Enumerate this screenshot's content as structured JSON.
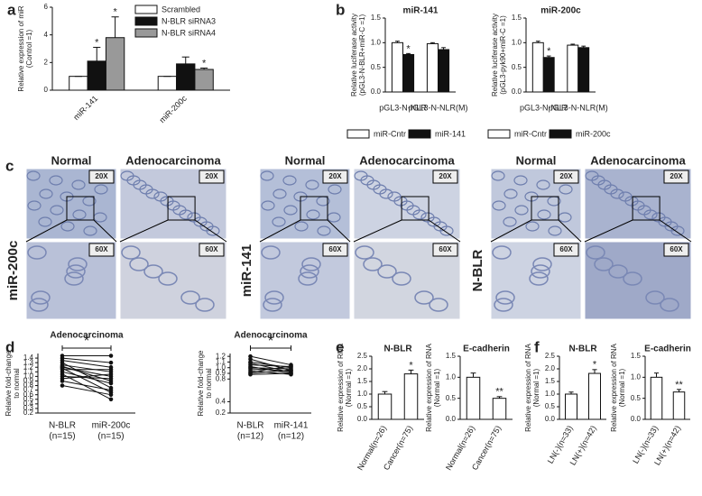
{
  "panel_labels": [
    "a",
    "b",
    "c",
    "d",
    "e",
    "f"
  ],
  "micrographs": {
    "labels": {
      "normal": "Normal",
      "tumor": "Adenocarcinoma",
      "low": "20X",
      "high": "60X"
    },
    "rows": [
      "miR-200c",
      "miR-141",
      "N-BLR"
    ]
  },
  "chart_data": [
    {
      "type": "bar",
      "ylabel": [
        "Relative expression of miR",
        "(Control =1)"
      ],
      "legend": "top-right",
      "categories": [
        "miR-141",
        "miR-200c"
      ],
      "ylim": [
        0,
        6
      ],
      "yticks": [
        0,
        2,
        4,
        6
      ],
      "series": [
        {
          "name": "Scrambled",
          "color": "#ffffff",
          "values": [
            1,
            1
          ],
          "errors": [
            0,
            0
          ]
        },
        {
          "name": "N-BLR siRNA3",
          "color": "#111111",
          "values": [
            2.1,
            1.9
          ],
          "errors": [
            1.0,
            0.5
          ],
          "labels": [
            "*",
            null
          ]
        },
        {
          "name": "N-BLR siRNA4",
          "color": "#999999",
          "values": [
            3.8,
            1.5
          ],
          "errors": [
            1.5,
            0.1
          ],
          "labels": [
            "*",
            "*"
          ]
        }
      ]
    },
    {
      "type": "bar",
      "title": "miR-141",
      "ylabel": [
        "Relative luciferase activity",
        "(pGL3-N-BLR+miR-C =1)"
      ],
      "legend": "bottom",
      "categories": [
        "pGL3-N-NLR",
        "pGL3-N-NLR(M)"
      ],
      "ylim": [
        0,
        1.5
      ],
      "yticks": [
        {
          "value": 0,
          "label": "0.0"
        },
        0.5,
        {
          "value": 1,
          "label": "1.0"
        },
        1.5
      ],
      "series": [
        {
          "name": "miR-Cntr",
          "color": "#ffffff",
          "values": [
            1.0,
            0.98
          ],
          "errors": [
            0.03,
            0.02
          ]
        },
        {
          "name": "miR-141",
          "color": "#111111",
          "values": [
            0.76,
            0.86
          ],
          "errors": [
            0.02,
            0.04
          ],
          "labels": [
            "*",
            null
          ]
        }
      ]
    },
    {
      "type": "bar",
      "title": "miR-200c",
      "ylabel": [
        "Relative luciferase activity",
        "(pGL3-pyk90+miR-C =1)"
      ],
      "legend": "bottom",
      "categories": [
        "pGL3-N-NLR",
        "pGL3-N-NLR(M)"
      ],
      "ylim": [
        0,
        1.5
      ],
      "yticks": [
        {
          "value": 0,
          "label": "0.0"
        },
        0.5,
        {
          "value": 1,
          "label": "1.0"
        },
        1.5
      ],
      "series": [
        {
          "name": "miR-Cntr",
          "color": "#ffffff",
          "values": [
            1.0,
            0.95
          ],
          "errors": [
            0.03,
            0.02
          ]
        },
        {
          "name": "miR-200c",
          "color": "#111111",
          "values": [
            0.7,
            0.9
          ],
          "errors": [
            0.03,
            0.03
          ],
          "labels": [
            "*",
            null
          ]
        }
      ]
    },
    {
      "type": "line",
      "title": "Adenocarcinoma",
      "significance": "*",
      "ylabel": [
        "Relative fold-change",
        "to normal"
      ],
      "categories": [
        "N-BLR",
        "miR-200c"
      ],
      "category_notes": [
        "(n=15)",
        "(n=15)"
      ],
      "ylim": [
        0.2,
        1.5
      ],
      "yticks": [
        0.2,
        0.3,
        0.4,
        0.5,
        0.6,
        0.7,
        0.8,
        0.9,
        {
          "value": 1,
          "label": "1.0"
        },
        1.1,
        1.2,
        1.3,
        1.4
      ],
      "series": [
        {
          "color": "#111111",
          "values": [
            1.45,
            1.45
          ]
        },
        {
          "color": "#111111",
          "values": [
            1.4,
            1.3
          ]
        },
        {
          "color": "#111111",
          "values": [
            1.35,
            1.2
          ]
        },
        {
          "color": "#111111",
          "values": [
            1.3,
            0.75
          ]
        },
        {
          "color": "#111111",
          "values": [
            1.25,
            1.1
          ]
        },
        {
          "color": "#111111",
          "values": [
            1.22,
            0.9
          ]
        },
        {
          "color": "#111111",
          "values": [
            1.2,
            1.0
          ]
        },
        {
          "color": "#111111",
          "values": [
            1.18,
            0.65
          ]
        },
        {
          "color": "#111111",
          "values": [
            1.15,
            1.15
          ]
        },
        {
          "color": "#111111",
          "values": [
            1.1,
            0.85
          ]
        },
        {
          "color": "#111111",
          "values": [
            1.05,
            0.5
          ]
        },
        {
          "color": "#111111",
          "values": [
            1.0,
            0.95
          ]
        },
        {
          "color": "#111111",
          "values": [
            0.95,
            1.05
          ]
        },
        {
          "color": "#111111",
          "values": [
            0.9,
            0.7
          ]
        },
        {
          "color": "#111111",
          "values": [
            0.8,
            0.6
          ]
        }
      ]
    },
    {
      "type": "line",
      "title": "Adenocarcinoma",
      "significance": "*",
      "ylabel": [
        "Relative fold-change",
        "to normal"
      ],
      "categories": [
        "N-BLR",
        "miR-141"
      ],
      "category_notes": [
        "(n=12)",
        "(n=12)"
      ],
      "ylim": [
        0.2,
        1.25
      ],
      "yticks": [
        0.2,
        0.4,
        0.8,
        0.9,
        {
          "value": 1,
          "label": "1.0"
        },
        1.1,
        1.2
      ],
      "series": [
        {
          "color": "#111111",
          "values": [
            1.2,
            1.05
          ]
        },
        {
          "color": "#111111",
          "values": [
            1.15,
            0.95
          ]
        },
        {
          "color": "#111111",
          "values": [
            1.1,
            1.0
          ]
        },
        {
          "color": "#111111",
          "values": [
            1.08,
            0.92
          ]
        },
        {
          "color": "#111111",
          "values": [
            1.05,
            1.02
          ]
        },
        {
          "color": "#111111",
          "values": [
            1.02,
            0.9
          ]
        },
        {
          "color": "#111111",
          "values": [
            1.0,
            0.98
          ]
        },
        {
          "color": "#111111",
          "values": [
            0.98,
            0.94
          ]
        },
        {
          "color": "#111111",
          "values": [
            0.95,
            0.88
          ]
        },
        {
          "color": "#111111",
          "values": [
            0.92,
            1.03
          ]
        },
        {
          "color": "#111111",
          "values": [
            0.9,
            0.96
          ]
        },
        {
          "color": "#111111",
          "values": [
            0.88,
            0.9
          ]
        }
      ]
    },
    {
      "type": "bar",
      "title": "N-BLR",
      "ylabel": [
        "Relative expression of RNA",
        "(Normal =1)"
      ],
      "categories": [
        "Normal(n=26)",
        "Cancer(n=75)"
      ],
      "ylim": [
        0,
        2.5
      ],
      "yticks": [
        {
          "value": 0,
          "label": "0.0"
        },
        0.5,
        {
          "value": 1,
          "label": "1.0"
        },
        1.5,
        {
          "value": 2,
          "label": "2.0"
        },
        2.5
      ],
      "series": [
        {
          "color": "#ffffff",
          "values": [
            1.0,
            1.8
          ],
          "errors": [
            0.1,
            0.15
          ],
          "labels": [
            null,
            "*"
          ]
        }
      ]
    },
    {
      "type": "bar",
      "title": "E-cadherin",
      "ylabel": [
        "Relative expression of RNA",
        "(Normal =1)"
      ],
      "categories": [
        "Normal(n=26)",
        "Cancer(n=75)"
      ],
      "ylim": [
        0,
        1.5
      ],
      "yticks": [
        {
          "value": 0,
          "label": "0.0"
        },
        0.5,
        {
          "value": 1,
          "label": "1.0"
        },
        1.5
      ],
      "series": [
        {
          "color": "#ffffff",
          "values": [
            1.0,
            0.5
          ],
          "errors": [
            0.1,
            0.04
          ],
          "labels": [
            null,
            "**"
          ]
        }
      ]
    },
    {
      "type": "bar",
      "title": "N-BLR",
      "ylabel": [
        "Relative expression of RNA",
        "(Normal =1)"
      ],
      "categories": [
        "LN(-)(n=33)",
        "LN(+)(n=42)"
      ],
      "ylim": [
        0,
        2.5
      ],
      "yticks": [
        {
          "value": 0,
          "label": "0.0"
        },
        0.5,
        {
          "value": 1,
          "label": "1.0"
        },
        1.5,
        {
          "value": 2,
          "label": "2.0"
        },
        2.5
      ],
      "series": [
        {
          "color": "#ffffff",
          "values": [
            1.0,
            1.82
          ],
          "errors": [
            0.08,
            0.15
          ],
          "labels": [
            null,
            "*"
          ]
        }
      ]
    },
    {
      "type": "bar",
      "title": "E-cadherin",
      "ylabel": [
        "Relative expression of RNA",
        "(Normal =1)"
      ],
      "categories": [
        "LN(-)(n=33)",
        "LN(+)(n=42)"
      ],
      "ylim": [
        0,
        1.5
      ],
      "yticks": [
        {
          "value": 0,
          "label": "0.0"
        },
        0.5,
        {
          "value": 1,
          "label": "1.0"
        },
        1.5
      ],
      "series": [
        {
          "color": "#ffffff",
          "values": [
            1.0,
            0.65
          ],
          "errors": [
            0.1,
            0.06
          ],
          "labels": [
            null,
            "**"
          ]
        }
      ]
    }
  ]
}
